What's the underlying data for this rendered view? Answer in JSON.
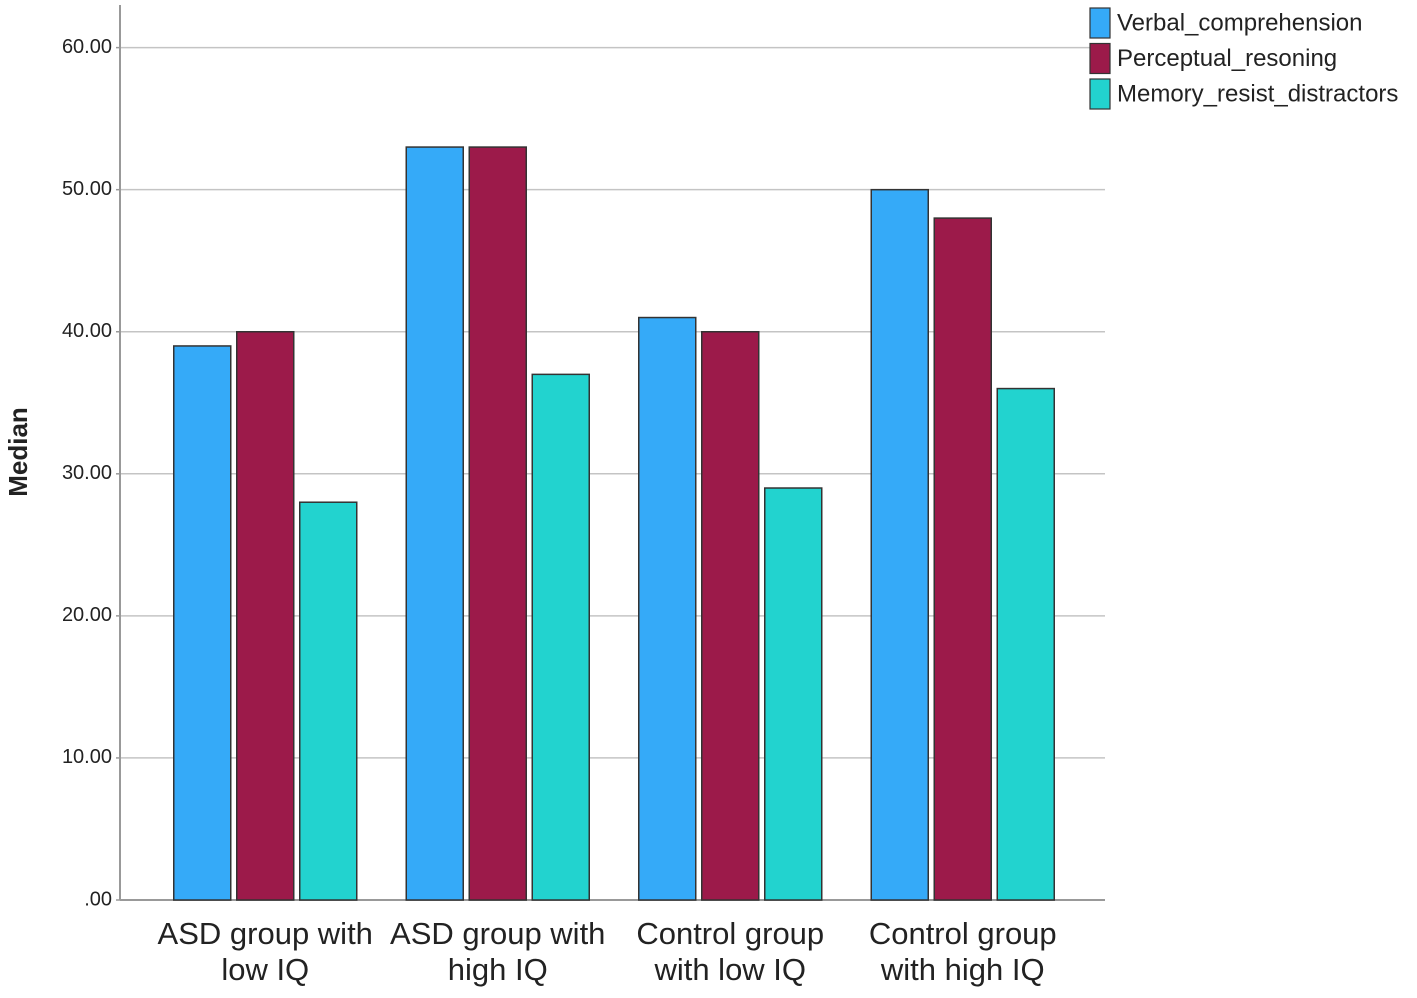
{
  "chart_data": {
    "type": "bar",
    "y_label": "Median",
    "categories": [
      "ASD group with low IQ",
      "ASD group with high IQ",
      "Control group with low IQ",
      "Control group with high IQ"
    ],
    "series": [
      {
        "name": "Verbal_comprehension",
        "color": "#35aaf8",
        "values": [
          39,
          53,
          41,
          50
        ]
      },
      {
        "name": "Perceptual_resoning",
        "color": "#9c1a4a",
        "values": [
          40,
          53,
          40,
          48
        ]
      },
      {
        "name": "Memory_resist_distractors",
        "color": "#22d3cf",
        "values": [
          28,
          37,
          29,
          36
        ]
      }
    ],
    "ylim": [
      0,
      63
    ],
    "yticks": [
      {
        "value": 0,
        "label": ".00"
      },
      {
        "value": 10,
        "label": "10.00"
      },
      {
        "value": 20,
        "label": "20.00"
      },
      {
        "value": 30,
        "label": "30.00"
      },
      {
        "value": 40,
        "label": "40.00"
      },
      {
        "value": 50,
        "label": "50.00"
      },
      {
        "value": 60,
        "label": "60.00"
      }
    ],
    "grid": true,
    "legend": "top-right"
  }
}
